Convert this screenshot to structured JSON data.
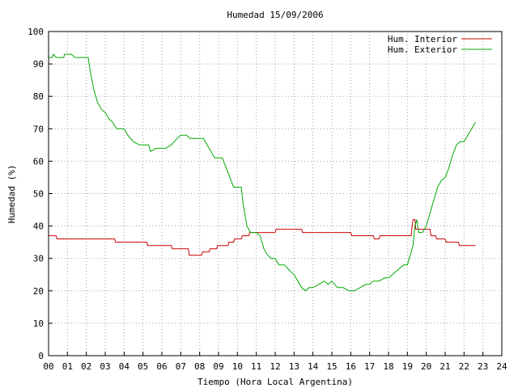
{
  "chart_data": {
    "type": "line",
    "title": "Humedad 15/09/2006",
    "xlabel": "Tiempo (Hora Local Argentina)",
    "ylabel": "Humedad (%)",
    "xlim": [
      0,
      24
    ],
    "ylim": [
      0,
      100
    ],
    "x_ticks": [
      "00",
      "01",
      "02",
      "03",
      "04",
      "05",
      "06",
      "07",
      "08",
      "09",
      "10",
      "11",
      "12",
      "13",
      "14",
      "15",
      "16",
      "17",
      "18",
      "19",
      "20",
      "21",
      "22",
      "23",
      "24"
    ],
    "y_ticks": [
      "0",
      "10",
      "20",
      "30",
      "40",
      "50",
      "60",
      "70",
      "80",
      "90",
      "100"
    ],
    "grid": true,
    "legend_position": "top-right",
    "series": [
      {
        "name": "Hum. Interior",
        "color": "#cc0000",
        "points": [
          [
            0.0,
            37
          ],
          [
            0.4,
            37
          ],
          [
            0.45,
            36
          ],
          [
            3.5,
            36
          ],
          [
            3.55,
            35
          ],
          [
            5.2,
            35
          ],
          [
            5.25,
            34
          ],
          [
            6.5,
            34
          ],
          [
            6.55,
            33
          ],
          [
            7.4,
            33
          ],
          [
            7.45,
            31
          ],
          [
            8.1,
            31
          ],
          [
            8.15,
            32
          ],
          [
            8.5,
            32
          ],
          [
            8.55,
            33
          ],
          [
            8.9,
            33
          ],
          [
            8.95,
            34
          ],
          [
            9.5,
            34
          ],
          [
            9.55,
            35
          ],
          [
            9.8,
            35
          ],
          [
            9.85,
            36
          ],
          [
            10.2,
            36
          ],
          [
            10.25,
            37
          ],
          [
            10.6,
            37
          ],
          [
            10.65,
            38
          ],
          [
            12.0,
            38
          ],
          [
            12.05,
            39
          ],
          [
            13.4,
            39
          ],
          [
            13.45,
            38
          ],
          [
            16.0,
            38
          ],
          [
            16.05,
            37
          ],
          [
            17.2,
            37
          ],
          [
            17.25,
            36
          ],
          [
            17.5,
            36
          ],
          [
            17.55,
            37
          ],
          [
            19.2,
            37
          ],
          [
            19.25,
            40
          ],
          [
            19.3,
            42
          ],
          [
            19.4,
            42
          ],
          [
            19.45,
            39
          ],
          [
            20.2,
            39
          ],
          [
            20.25,
            37
          ],
          [
            20.5,
            37
          ],
          [
            20.55,
            36
          ],
          [
            21.0,
            36
          ],
          [
            21.05,
            35
          ],
          [
            21.7,
            35
          ],
          [
            21.75,
            34
          ],
          [
            22.6,
            34
          ]
        ]
      },
      {
        "name": "Hum. Exterior",
        "color": "#00aa00",
        "points": [
          [
            0.0,
            92
          ],
          [
            0.2,
            92
          ],
          [
            0.25,
            93
          ],
          [
            0.4,
            92
          ],
          [
            0.8,
            92
          ],
          [
            0.85,
            93
          ],
          [
            1.2,
            93
          ],
          [
            1.4,
            92
          ],
          [
            2.1,
            92
          ],
          [
            2.2,
            88
          ],
          [
            2.4,
            82
          ],
          [
            2.6,
            78
          ],
          [
            2.8,
            76
          ],
          [
            3.0,
            75
          ],
          [
            3.2,
            73
          ],
          [
            3.4,
            72
          ],
          [
            3.6,
            70
          ],
          [
            4.0,
            70
          ],
          [
            4.2,
            68
          ],
          [
            4.5,
            66
          ],
          [
            4.8,
            65
          ],
          [
            5.3,
            65
          ],
          [
            5.4,
            63
          ],
          [
            5.7,
            64
          ],
          [
            6.2,
            64
          ],
          [
            6.5,
            65
          ],
          [
            6.8,
            67
          ],
          [
            7.0,
            68
          ],
          [
            7.3,
            68
          ],
          [
            7.5,
            67
          ],
          [
            8.2,
            67
          ],
          [
            8.5,
            64
          ],
          [
            8.8,
            61
          ],
          [
            9.2,
            61
          ],
          [
            9.4,
            58
          ],
          [
            9.6,
            55
          ],
          [
            9.8,
            52
          ],
          [
            10.2,
            52
          ],
          [
            10.3,
            47
          ],
          [
            10.5,
            40
          ],
          [
            10.7,
            38
          ],
          [
            11.0,
            38
          ],
          [
            11.2,
            37
          ],
          [
            11.4,
            33
          ],
          [
            11.6,
            31
          ],
          [
            11.8,
            30
          ],
          [
            12.0,
            30
          ],
          [
            12.2,
            28
          ],
          [
            12.5,
            28
          ],
          [
            12.8,
            26
          ],
          [
            13.0,
            25
          ],
          [
            13.2,
            23
          ],
          [
            13.4,
            21
          ],
          [
            13.6,
            20
          ],
          [
            13.8,
            21
          ],
          [
            14.0,
            21
          ],
          [
            14.3,
            22
          ],
          [
            14.6,
            23
          ],
          [
            14.8,
            22
          ],
          [
            15.0,
            23
          ],
          [
            15.3,
            21
          ],
          [
            15.6,
            21
          ],
          [
            15.9,
            20
          ],
          [
            16.2,
            20
          ],
          [
            16.5,
            21
          ],
          [
            16.8,
            22
          ],
          [
            17.0,
            22
          ],
          [
            17.2,
            23
          ],
          [
            17.5,
            23
          ],
          [
            17.8,
            24
          ],
          [
            18.0,
            24
          ],
          [
            18.2,
            25
          ],
          [
            18.4,
            26
          ],
          [
            18.6,
            27
          ],
          [
            18.8,
            28
          ],
          [
            19.0,
            28
          ],
          [
            19.1,
            30
          ],
          [
            19.3,
            34
          ],
          [
            19.4,
            40
          ],
          [
            19.5,
            42
          ],
          [
            19.6,
            38
          ],
          [
            19.8,
            38
          ],
          [
            20.0,
            40
          ],
          [
            20.2,
            44
          ],
          [
            20.4,
            48
          ],
          [
            20.6,
            52
          ],
          [
            20.8,
            54
          ],
          [
            21.0,
            55
          ],
          [
            21.2,
            58
          ],
          [
            21.4,
            62
          ],
          [
            21.6,
            65
          ],
          [
            21.8,
            66
          ],
          [
            22.0,
            66
          ],
          [
            22.2,
            68
          ],
          [
            22.4,
            70
          ],
          [
            22.6,
            72
          ]
        ]
      }
    ]
  }
}
